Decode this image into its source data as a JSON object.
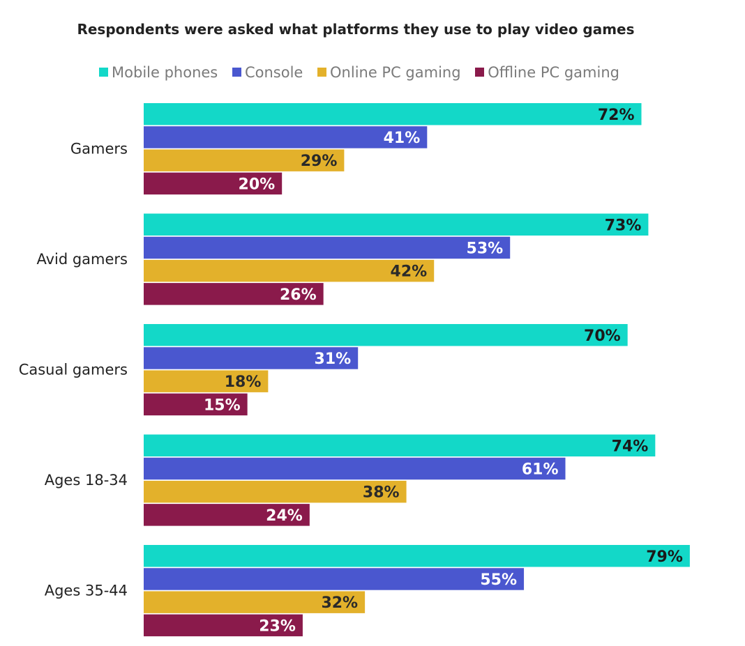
{
  "chart_data": {
    "type": "bar",
    "orientation": "horizontal",
    "title": "Respondents were asked what platforms they use to play video games",
    "categories": [
      "Gamers",
      "Avid gamers",
      "Casual gamers",
      "Ages 18-34",
      "Ages 35-44"
    ],
    "series": [
      {
        "name": "Mobile phones",
        "color": "#13d8c8",
        "label_color": "#1a1a1a",
        "values": [
          72,
          73,
          70,
          74,
          79
        ],
        "labels": [
          "72%",
          "73%",
          "70%",
          "74%",
          "79%"
        ]
      },
      {
        "name": "Console",
        "color": "#4a57cf",
        "label_color": "#ffffff",
        "values": [
          41,
          53,
          31,
          61,
          55
        ],
        "labels": [
          "41%",
          "53%",
          "31%",
          "61%",
          "55%"
        ]
      },
      {
        "name": "Online PC gaming",
        "color": "#e3b12b",
        "label_color": "#2a2a2a",
        "values": [
          29,
          42,
          18,
          38,
          32
        ],
        "labels": [
          "29%",
          "42%",
          "18%",
          "38%",
          "32%"
        ]
      },
      {
        "name": "Offline PC gaming",
        "color": "#8a1a4b",
        "label_color": "#ffffff",
        "values": [
          20,
          26,
          15,
          24,
          23
        ],
        "labels": [
          "20%",
          "26%",
          "15%",
          "24%",
          "23%"
        ]
      }
    ],
    "xlim": [
      0,
      100
    ],
    "grid": false,
    "legend_position": "top"
  }
}
